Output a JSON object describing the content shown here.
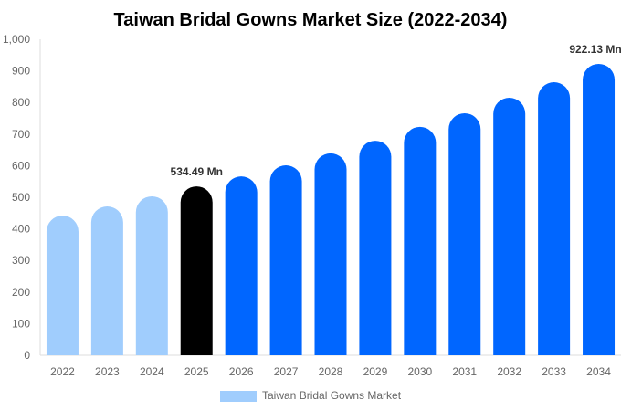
{
  "chart_data": {
    "type": "bar",
    "title": "Taiwan Bridal Gowns Market Size (2022-2034)",
    "xlabel": "",
    "ylabel": "",
    "ylim": [
      0,
      1000
    ],
    "yticks": [
      "0",
      "100",
      "200",
      "300",
      "400",
      "500",
      "600",
      "700",
      "800",
      "900",
      "1,000"
    ],
    "categories": [
      "2022",
      "2023",
      "2024",
      "2025",
      "2026",
      "2027",
      "2028",
      "2029",
      "2030",
      "2031",
      "2032",
      "2033",
      "2034"
    ],
    "series": [
      {
        "name": "Taiwan Bridal Gowns Market",
        "values": [
          442,
          471,
          503,
          534.49,
          566,
          601,
          639,
          679,
          723,
          766,
          815,
          864,
          922.13
        ]
      }
    ],
    "bar_colors": [
      "#a0cdfd",
      "#a0cdfd",
      "#a0cdfd",
      "#000000",
      "#0066ff",
      "#0066ff",
      "#0066ff",
      "#0066ff",
      "#0066ff",
      "#0066ff",
      "#0066ff",
      "#0066ff",
      "#0066ff"
    ],
    "data_labels": [
      {
        "index": 3,
        "text": "534.49 Mn"
      },
      {
        "index": 12,
        "text": "922.13 Mn"
      }
    ],
    "legend": {
      "position": "bottom",
      "color": "#a0cdfd"
    },
    "grid": false
  }
}
